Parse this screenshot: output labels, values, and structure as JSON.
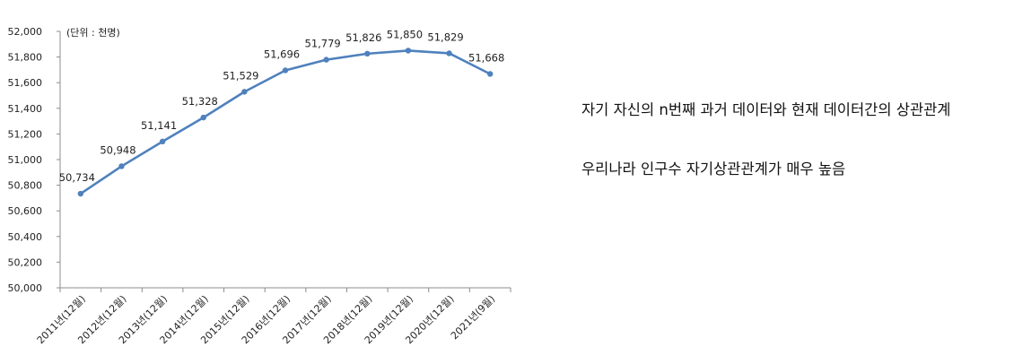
{
  "chart_data": {
    "type": "line",
    "unit_note": "(단위 : 천명)",
    "categories": [
      "2011년(12월)",
      "2012년(12월)",
      "2013년(12월)",
      "2014년(12월)",
      "2015년(12월)",
      "2016년(12월)",
      "2017년(12월)",
      "2018년(12월)",
      "2019년(12월)",
      "2020년(12월)",
      "2021년(9월)"
    ],
    "values": [
      50734,
      50948,
      51141,
      51328,
      51529,
      51696,
      51779,
      51826,
      51850,
      51829,
      51668
    ],
    "value_labels": [
      "50,734",
      "50,948",
      "51,141",
      "51,328",
      "51,529",
      "51,696",
      "51,779",
      "51,826",
      "51,850",
      "51,829",
      "51,668"
    ],
    "yticks": [
      "50,000",
      "50,200",
      "50,400",
      "50,600",
      "50,800",
      "51,000",
      "51,200",
      "51,400",
      "51,600",
      "51,800",
      "52,000"
    ],
    "ylim": [
      50000,
      52000
    ],
    "grid": false,
    "line_color": "#4f81bd"
  },
  "notes": [
    "자기 자신의 n번째 과거 데이터와 현재 데이터간의 상관관계",
    "우리나라 인구수 자기상관관계가 매우 높음"
  ]
}
